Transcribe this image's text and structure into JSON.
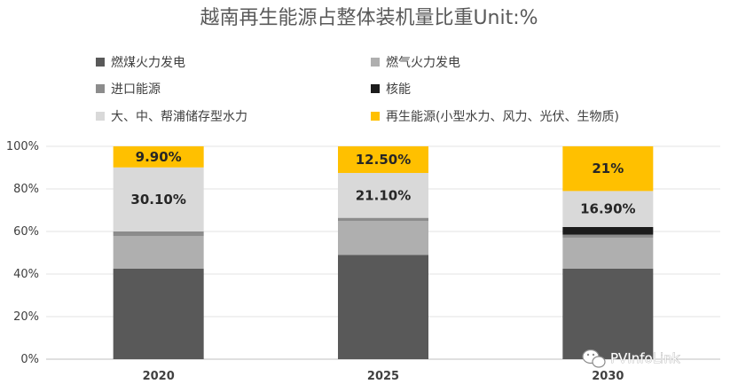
{
  "chart_data": {
    "type": "bar",
    "stacked": true,
    "title": "越南再生能源占整体装机量比重Unit:%",
    "categories": [
      "2020",
      "2025",
      "2030"
    ],
    "yticks": [
      "0%",
      "20%",
      "40%",
      "60%",
      "80%",
      "100%"
    ],
    "ylim": [
      0,
      100
    ],
    "series": [
      {
        "name": "燃煤火力发电",
        "color": "#595959",
        "values": [
          42.5,
          49.0,
          42.5
        ],
        "labels": [
          "",
          "",
          ""
        ]
      },
      {
        "name": "燃气火力发电",
        "color": "#afafaf",
        "values": [
          15.3,
          16.0,
          14.6
        ],
        "labels": [
          "",
          "",
          ""
        ]
      },
      {
        "name": "进口能源",
        "color": "#8c8c8c",
        "values": [
          2.2,
          1.4,
          1.4
        ],
        "labels": [
          "",
          "",
          ""
        ]
      },
      {
        "name": "核能",
        "color": "#1c1c1c",
        "values": [
          0.0,
          0.0,
          3.6
        ],
        "labels": [
          "",
          "",
          ""
        ]
      },
      {
        "name": "大、中、帮浦储存型水力",
        "color": "#d9d9d9",
        "values": [
          30.1,
          21.1,
          16.9
        ],
        "labels": [
          "30.10%",
          "21.10%",
          "16.90%"
        ]
      },
      {
        "name": "再生能源(小型水力、风力、光伏、生物质)",
        "color": "#ffc000",
        "values": [
          9.9,
          12.5,
          21.0
        ],
        "labels": [
          "9.90%",
          "12.50%",
          "21%"
        ]
      }
    ],
    "legend_position": "top"
  },
  "watermark": {
    "text": "PVInfoLink",
    "icon": "wechat-icon"
  }
}
